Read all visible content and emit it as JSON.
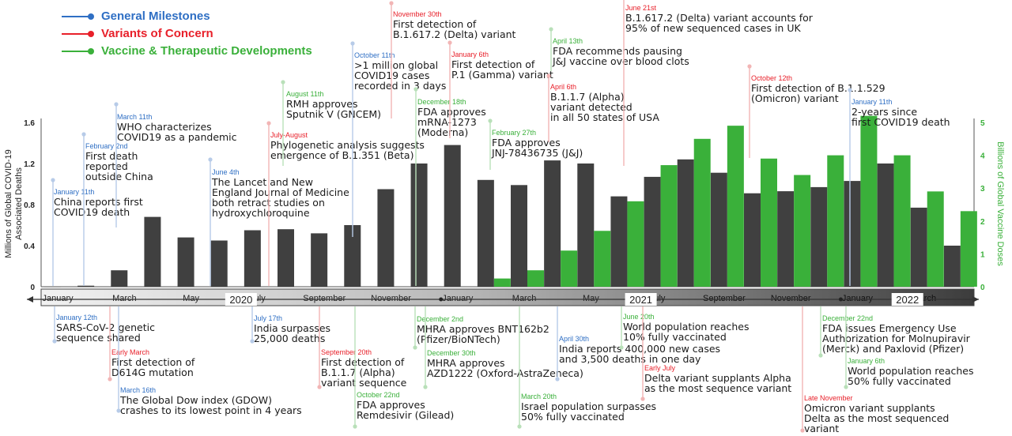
{
  "legend": {
    "items": [
      {
        "label": "General Milestones",
        "color": "#2f6fc4"
      },
      {
        "label": "Variants of Concern",
        "color": "#e8202a"
      },
      {
        "label": "Vaccine & Therapeutic Developments",
        "color": "#3ab03a"
      }
    ]
  },
  "chart_data": {
    "type": "bar",
    "ylabel": "Millions of Global COVID-19 Associated Deaths",
    "y2label": "Billions of Global Vaccine Doses",
    "ylim": [
      0,
      1.6
    ],
    "yticks": [
      "0",
      "0.4",
      "0.8",
      "1.2",
      "1.6"
    ],
    "y2lim": [
      0,
      5
    ],
    "y2ticks": [
      "0",
      "1",
      "2",
      "3",
      "4",
      "5"
    ],
    "month_labels": [
      "January",
      "March",
      "May",
      "July",
      "September",
      "November",
      "January",
      "March",
      "May",
      "July",
      "September",
      "November",
      "January",
      "March"
    ],
    "year_labels": [
      "2020",
      "2021",
      "2022"
    ],
    "series": [
      {
        "name": "deaths",
        "color": "#404040",
        "values": [
          0.0,
          0.01,
          0.16,
          0.68,
          0.48,
          0.45,
          0.55,
          0.56,
          0.52,
          0.6,
          0.95,
          1.2,
          1.38,
          1.04,
          0.99,
          1.23,
          1.2,
          0.88,
          1.07,
          1.24,
          1.11,
          0.91,
          0.93,
          0.97,
          1.03,
          1.2,
          0.77,
          0.4
        ]
      },
      {
        "name": "vaccine doses",
        "color": "#3ab03a",
        "values": [
          null,
          null,
          null,
          null,
          null,
          null,
          null,
          null,
          null,
          null,
          null,
          null,
          null,
          0.25,
          0.5,
          1.1,
          1.7,
          2.6,
          3.7,
          4.5,
          4.9,
          3.9,
          3.4,
          4.0,
          5.2,
          4.0,
          2.9,
          2.3
        ]
      }
    ]
  },
  "annotations_above": [
    {
      "date": "January 11th",
      "text": "China reports first\nCOVID19 death",
      "kind": "general"
    },
    {
      "date": "February 2nd",
      "text": "First death\nreported\noutside China",
      "kind": "general"
    },
    {
      "date": "March 11th",
      "text": "WHO characterizes\nCOVID19 as a pandemic",
      "kind": "general"
    },
    {
      "date": "June 4th",
      "text": "The Lancet and New\nEngland Journal of Medicine\nboth retract studies on\nhydroxychloroquine",
      "kind": "general"
    },
    {
      "date": "July-August",
      "text": "Phylogenetic analysis suggests\nemergence of B.1.351 (Beta)",
      "kind": "variant"
    },
    {
      "date": "August 11th",
      "text": "RMH approves\nSputnik V (GNCEM)",
      "kind": "vaccine"
    },
    {
      "date": "October 11th",
      "text": ">1 million global\nCOVID19 cases\nrecorded in 3 days",
      "kind": "general"
    },
    {
      "date": "November 30th",
      "text": "First detection of\nB.1.617.2 (Delta) variant",
      "kind": "variant"
    },
    {
      "date": "December 18th",
      "text": "FDA approves\nmRNA-1273\n(Moderna)",
      "kind": "vaccine"
    },
    {
      "date": "January 6th",
      "text": "First detection of\nP.1 (Gamma) variant",
      "kind": "variant"
    },
    {
      "date": "February 27th",
      "text": "FDA approves\nJNJ-78436735 (J&J)",
      "kind": "vaccine"
    },
    {
      "date": "April 6th",
      "text": "B.1.1.7 (Alpha)\nvariant detected\nin all 50 states of USA",
      "kind": "variant"
    },
    {
      "date": "April 13th",
      "text": "FDA recommends pausing\nJ&J vaccine over blood clots",
      "kind": "vaccine"
    },
    {
      "date": "June 21st",
      "text": "B.1.617.2 (Delta) variant accounts for\n95% of new sequenced cases in UK",
      "kind": "variant"
    },
    {
      "date": "October 12th",
      "text": "First detection of B.1.1.529\n(Omicron) variant",
      "kind": "variant"
    },
    {
      "date": "January 11th",
      "text": "2-years since\nfirst COVID19 death",
      "kind": "general"
    }
  ],
  "annotations_below": [
    {
      "date": "January 12th",
      "text": "SARS-CoV-2 genetic\nsequence shared",
      "kind": "general"
    },
    {
      "date": "Early March",
      "text": "First detection of\nD614G mutation",
      "kind": "variant"
    },
    {
      "date": "March 16th",
      "text": "The Global Dow index (GDOW)\ncrashes to its lowest point in 4 years",
      "kind": "general"
    },
    {
      "date": "July 17th",
      "text": "India surpasses\n25,000 deaths",
      "kind": "general"
    },
    {
      "date": "September 20th",
      "text": "First detection of\nB.1.1.7 (Alpha)\nvariant sequence",
      "kind": "variant"
    },
    {
      "date": "October 22nd",
      "text": "FDA approves\nRemdesivir (Gilead)",
      "kind": "vaccine"
    },
    {
      "date": "December 2nd",
      "text": "MHRA approves BNT162b2\n(Pfizer/BioNTech)",
      "kind": "vaccine"
    },
    {
      "date": "December 30th",
      "text": "MHRA approves\nAZD1222 (Oxford-AstraZeneca)",
      "kind": "vaccine"
    },
    {
      "date": "March 20th",
      "text": "Israel population surpasses\n50% fully vaccinated",
      "kind": "vaccine"
    },
    {
      "date": "April 30th",
      "text": "India reports 400,000 new cases\nand 3,500 deaths in one day",
      "kind": "general"
    },
    {
      "date": "June 20th",
      "text": "World population reaches\n10% fully vaccinated",
      "kind": "vaccine"
    },
    {
      "date": "Early July",
      "text": "Delta variant supplants Alpha\nas the most sequence variant",
      "kind": "variant"
    },
    {
      "date": "Late November",
      "text": "Omicron variant supplants\nDelta as the most sequenced\nvariant",
      "kind": "variant"
    },
    {
      "date": "December 22nd",
      "text": "FDA issues Emergency Use\nAuthorization for Molnupiravir\n(Merck) and Paxlovid (Pfizer)",
      "kind": "vaccine"
    },
    {
      "date": "January 6th",
      "text": "World population reaches\n50% fully vaccinated",
      "kind": "vaccine"
    }
  ]
}
